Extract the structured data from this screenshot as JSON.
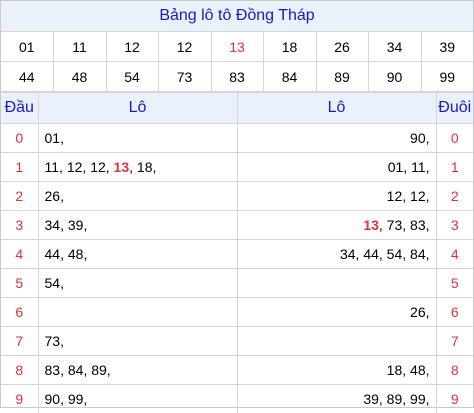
{
  "title": "Bảng lô tô Đồng Tháp",
  "numbers": [
    [
      "01",
      "11",
      "12",
      "12",
      "13",
      "18",
      "26",
      "34",
      "39"
    ],
    [
      "44",
      "48",
      "54",
      "73",
      "83",
      "84",
      "89",
      "90",
      "99"
    ]
  ],
  "highlight_number": "13",
  "headers": {
    "dau": "Đầu",
    "lo_left": "Lô",
    "lo_right": "Lô",
    "duoi": "Đuôi"
  },
  "rows": [
    {
      "dau": "0",
      "left": [
        "01"
      ],
      "right": [
        "90"
      ],
      "duoi": "0"
    },
    {
      "dau": "1",
      "left": [
        "11",
        "12",
        "12",
        "13",
        "18"
      ],
      "right": [
        "01",
        "11"
      ],
      "duoi": "1"
    },
    {
      "dau": "2",
      "left": [
        "26"
      ],
      "right": [
        "12",
        "12"
      ],
      "duoi": "2"
    },
    {
      "dau": "3",
      "left": [
        "34",
        "39"
      ],
      "right": [
        "13",
        "73",
        "83"
      ],
      "duoi": "3"
    },
    {
      "dau": "4",
      "left": [
        "44",
        "48"
      ],
      "right": [
        "34",
        "44",
        "54",
        "84"
      ],
      "duoi": "4"
    },
    {
      "dau": "5",
      "left": [
        "54"
      ],
      "right": [],
      "duoi": "5"
    },
    {
      "dau": "6",
      "left": [],
      "right": [
        "26"
      ],
      "duoi": "6"
    },
    {
      "dau": "7",
      "left": [
        "73"
      ],
      "right": [],
      "duoi": "7"
    },
    {
      "dau": "8",
      "left": [
        "83",
        "84",
        "89"
      ],
      "right": [
        "18",
        "48"
      ],
      "duoi": "8"
    },
    {
      "dau": "9",
      "left": [
        "90",
        "99"
      ],
      "right": [
        "39",
        "89",
        "99"
      ],
      "duoi": "9"
    }
  ],
  "colors": {
    "accent_red": "#e0323c",
    "header_blue": "#1a1acc",
    "header_bg": "#eaf1fb",
    "border": "#d6d6d6"
  }
}
